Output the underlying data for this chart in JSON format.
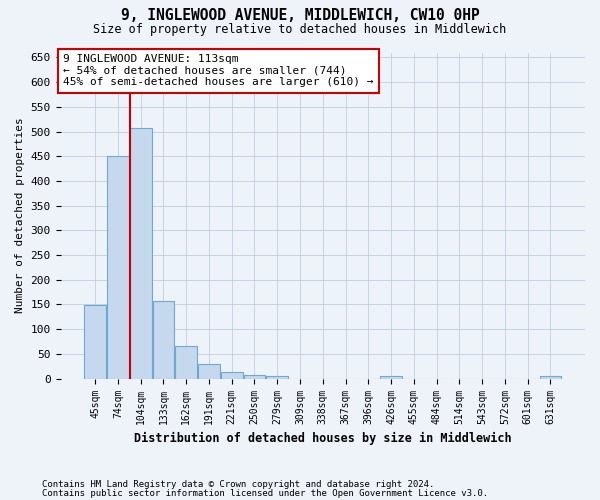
{
  "title": "9, INGLEWOOD AVENUE, MIDDLEWICH, CW10 0HP",
  "subtitle": "Size of property relative to detached houses in Middlewich",
  "xlabel": "Distribution of detached houses by size in Middlewich",
  "ylabel": "Number of detached properties",
  "bar_labels": [
    "45sqm",
    "74sqm",
    "104sqm",
    "133sqm",
    "162sqm",
    "191sqm",
    "221sqm",
    "250sqm",
    "279sqm",
    "309sqm",
    "338sqm",
    "367sqm",
    "396sqm",
    "426sqm",
    "455sqm",
    "484sqm",
    "514sqm",
    "543sqm",
    "572sqm",
    "601sqm",
    "631sqm"
  ],
  "bar_values": [
    148,
    450,
    508,
    158,
    65,
    30,
    13,
    8,
    5,
    0,
    0,
    0,
    0,
    6,
    0,
    0,
    0,
    0,
    0,
    0,
    6
  ],
  "bar_color": "#c5d8ee",
  "bar_edge_color": "#6aaad4",
  "annotation_line1": "9 INGLEWOOD AVENUE: 113sqm",
  "annotation_line2": "← 54% of detached houses are smaller (744)",
  "annotation_line3": "45% of semi-detached houses are larger (610) →",
  "annotation_box_color": "#ffffff",
  "annotation_box_edge": "#cc0000",
  "vline_color": "#cc0000",
  "vline_index": 2,
  "ylim": [
    0,
    660
  ],
  "yticks": [
    0,
    50,
    100,
    150,
    200,
    250,
    300,
    350,
    400,
    450,
    500,
    550,
    600,
    650
  ],
  "footer1": "Contains HM Land Registry data © Crown copyright and database right 2024.",
  "footer2": "Contains public sector information licensed under the Open Government Licence v3.0.",
  "bg_color": "#eef2f9"
}
